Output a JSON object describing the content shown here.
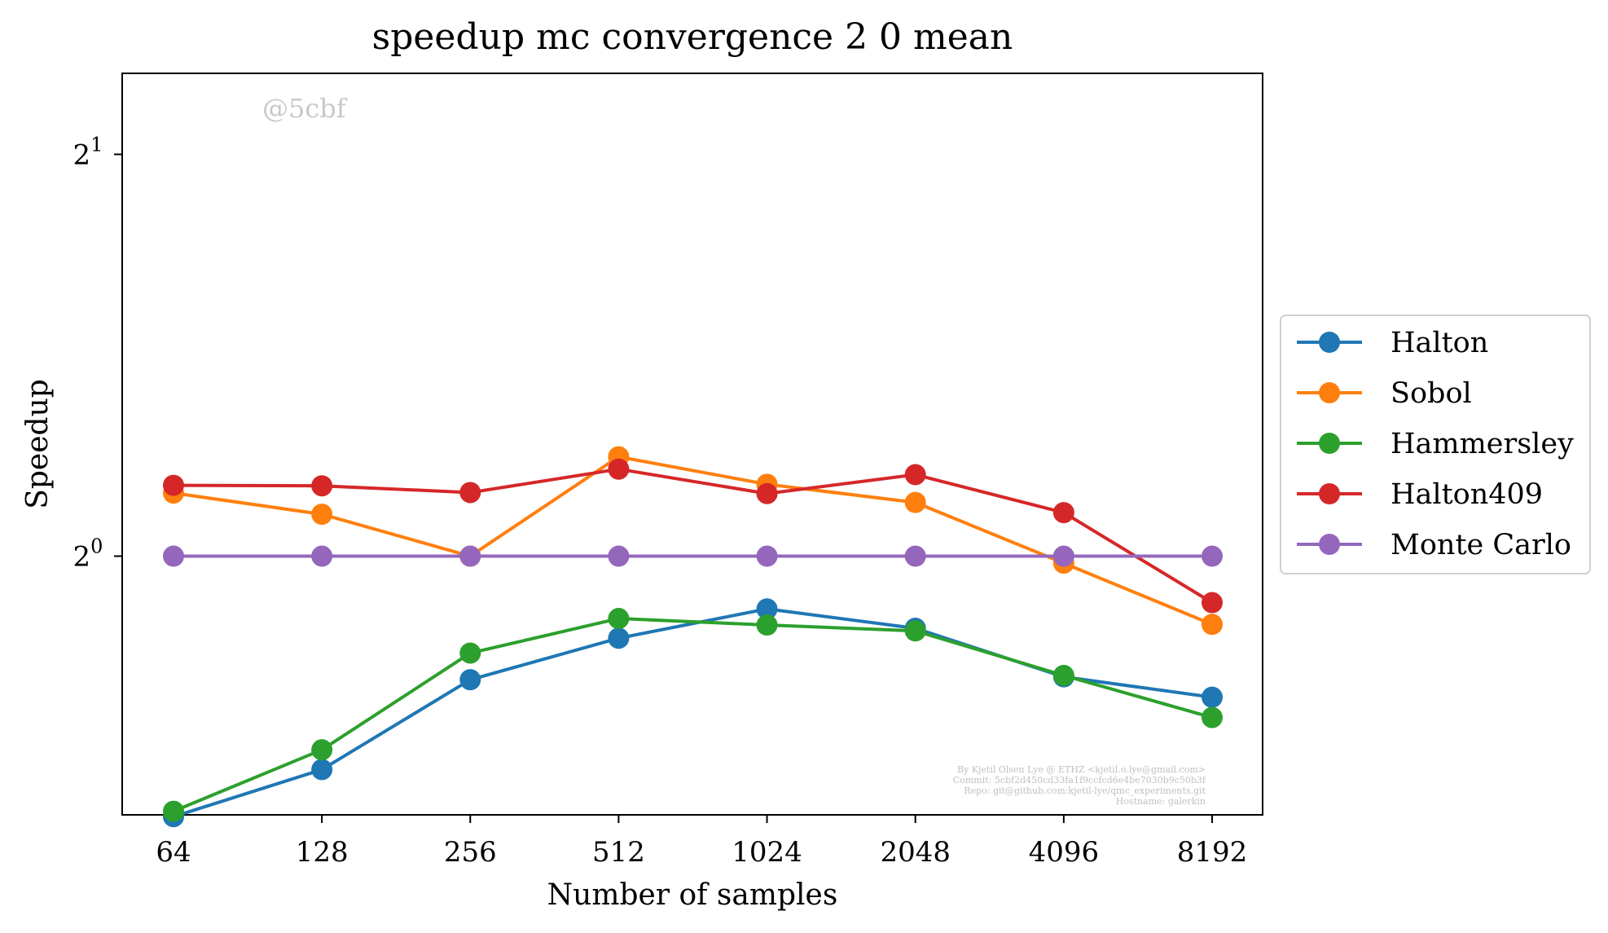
{
  "chart_data": {
    "type": "line",
    "title": "speedup mc convergence 2 0 mean",
    "xlabel": "Number of samples",
    "ylabel": "Speedup",
    "x_scale": "categorical",
    "y_scale": "log2",
    "ylim": [
      0.64,
      2.3
    ],
    "categories": [
      "64",
      "128",
      "256",
      "512",
      "1024",
      "2048",
      "4096",
      "8192"
    ],
    "y_ticks": [
      {
        "value": 1,
        "label": "2^0"
      },
      {
        "value": 2,
        "label": "2^1"
      }
    ],
    "grid": false,
    "legend_position": "right",
    "series": [
      {
        "name": "Halton",
        "color": "#1f77b4",
        "values": [
          0.638,
          0.692,
          0.808,
          0.868,
          0.913,
          0.883,
          0.812,
          0.784
        ]
      },
      {
        "name": "Sobol",
        "color": "#ff7f0e",
        "values": [
          1.115,
          1.075,
          1.0,
          1.187,
          1.132,
          1.097,
          0.988,
          0.889
        ]
      },
      {
        "name": "Hammersley",
        "color": "#2ca02c",
        "values": [
          0.644,
          0.716,
          0.846,
          0.898,
          0.888,
          0.879,
          0.814,
          0.757
        ]
      },
      {
        "name": "Halton409",
        "color": "#d62728",
        "values": [
          1.13,
          1.129,
          1.116,
          1.162,
          1.114,
          1.151,
          1.078,
          0.923
        ]
      },
      {
        "name": "Monte Carlo",
        "color": "#9467bd",
        "values": [
          1.0,
          1.0,
          1.0,
          1.0,
          1.0,
          1.0,
          1.0,
          1.0
        ]
      }
    ],
    "watermark": "@5cbf",
    "credits": [
      "By Kjetil Olsen Lye @ ETHZ <kjetil.o.lye@gmail.com>",
      "Commit: 5cbf2d450cd33fa1f9ccfcd6e4be7030b9c50b3f",
      "Repo: git@github.com:kjetil-lye/qmc_experiments.git",
      "Hostname: galerkin"
    ]
  }
}
